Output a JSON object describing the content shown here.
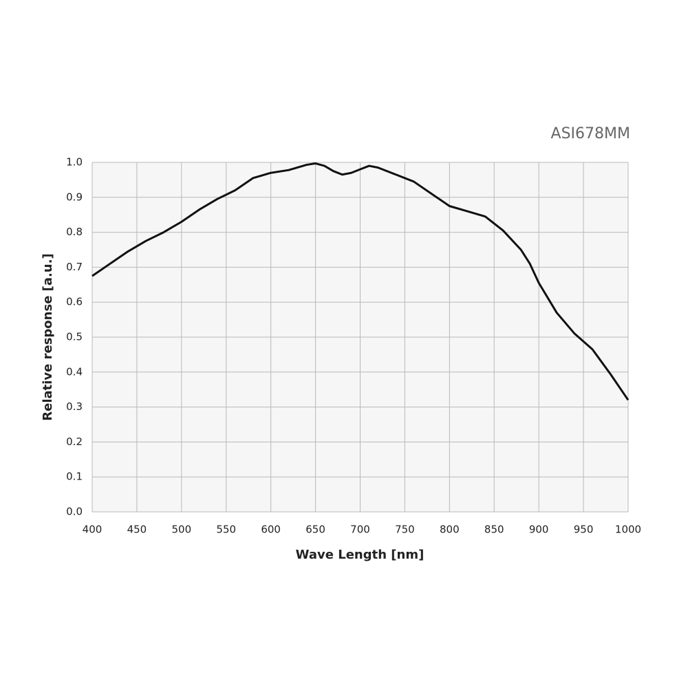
{
  "chart_data": {
    "type": "line",
    "title": "ASI678MM",
    "x_label": "Wave Length [nm]",
    "y_label": "Relative response [a.u.]",
    "x": [
      400,
      420,
      440,
      460,
      480,
      500,
      520,
      540,
      560,
      580,
      600,
      620,
      640,
      650,
      660,
      670,
      680,
      690,
      700,
      710,
      720,
      740,
      760,
      780,
      800,
      820,
      840,
      860,
      880,
      890,
      900,
      920,
      940,
      960,
      970,
      980,
      1000
    ],
    "series": [
      {
        "name": "ASI678MM",
        "color": "#111111",
        "values": [
          0.675,
          0.71,
          0.745,
          0.775,
          0.8,
          0.83,
          0.865,
          0.895,
          0.92,
          0.955,
          0.97,
          0.978,
          0.993,
          0.997,
          0.99,
          0.975,
          0.965,
          0.97,
          0.98,
          0.99,
          0.985,
          0.965,
          0.945,
          0.91,
          0.875,
          0.86,
          0.845,
          0.805,
          0.75,
          0.71,
          0.655,
          0.57,
          0.51,
          0.465,
          0.43,
          0.395,
          0.32
        ]
      }
    ],
    "xlim": [
      400,
      1000
    ],
    "ylim": [
      0,
      1
    ],
    "xticks": [
      400,
      450,
      500,
      550,
      600,
      650,
      700,
      750,
      800,
      850,
      900,
      950,
      1000
    ],
    "yticks": [
      {
        "value": 0,
        "label": "0.0"
      },
      0.1,
      0.2,
      0.3,
      0.4,
      0.5,
      0.6,
      0.7,
      0.8,
      0.9,
      {
        "value": 1,
        "label": "1.0"
      }
    ],
    "grid": true
  }
}
